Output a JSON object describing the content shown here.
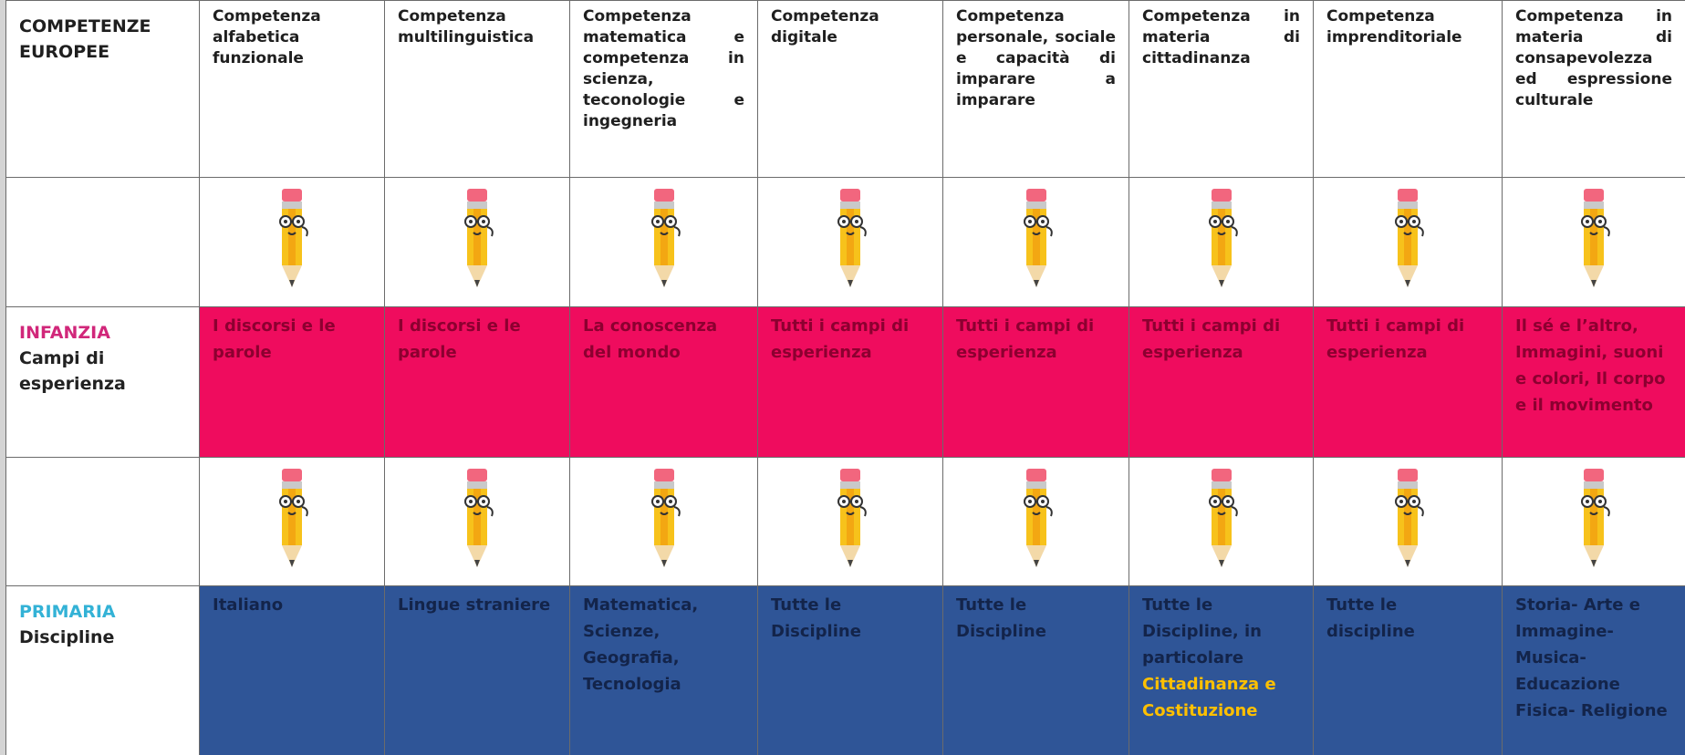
{
  "header": {
    "label": "COMPETENZE EUROPEE",
    "competences": [
      "Competenza alfabetica funzionale",
      "Competenza multilinguistica",
      "Competenza matematica e competenza in scienza, teconologie e ingegneria",
      "Competenza digitale",
      "Competenza personale, sociale e capacità di imparare a imparare",
      "Competenza in materia di cittadinanza",
      "Competenza imprenditoriale",
      "Competenza in materia di consapevolezza ed espressione culturale"
    ]
  },
  "infanzia": {
    "label": "INFANZIA",
    "sublabel": "Campi di esperienza",
    "cells": [
      "I discorsi e le parole",
      "I discorsi e le parole",
      "La conoscenza del mondo",
      "Tutti i campi di esperienza",
      "Tutti i campi di esperienza",
      "Tutti i campi di esperienza",
      "Tutti i campi di esperienza",
      "Il sé  e l’altro, Immagini, suoni e colori, Il corpo e il movimento"
    ]
  },
  "primaria": {
    "label": "PRIMARIA",
    "sublabel": "Discipline",
    "cells": [
      "Italiano",
      "Lingue straniere",
      "Matematica, Scienze, Geografia, Tecnologia",
      "Tutte le Discipline",
      "Tutte le Discipline",
      {
        "text": "Tutte le Discipline, in particolare",
        "highlight": "Cittadinanza e Costituzione"
      },
      "Tutte le discipline",
      "Storia- Arte e Immagine- Musica- Educazione Fisica- Religione"
    ]
  }
}
